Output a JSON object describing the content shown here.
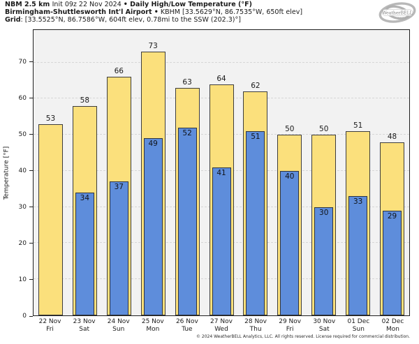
{
  "header": {
    "line1_bold1": "NBM 2.5 km ",
    "line1_regular": "Init 09z 22 Nov 2024 ",
    "line1_bold2": "• Daily High/Low Temperature (°F)",
    "line2_bold": "Birmingham-Shuttlesworth Int'l Airport •",
    "line2_regular": " KBHM [33.5629°N, 86.7535°W, 650ft elev]",
    "line3_bold": "Grid",
    "line3_regular": ": [33.5525°N, 86.7586°W, 604ft elev, 0.78mi to the SSW (202.3)°]"
  },
  "logo": {
    "brand": "WeatherBELL",
    "tagline": "Analytics LLC"
  },
  "chart_data": {
    "type": "bar",
    "title": "Daily High/Low Temperature (°F)",
    "ylabel": "Temperature [°F]",
    "ylim": [
      0,
      79
    ],
    "yticks": [
      0,
      10,
      20,
      30,
      40,
      50,
      60,
      70
    ],
    "grid": "horizontal dashed",
    "legend": "none",
    "plot_bg": "#f2f2f2",
    "categories": [
      {
        "date": "22 Nov",
        "day": "Fri"
      },
      {
        "date": "23 Nov",
        "day": "Sat"
      },
      {
        "date": "24 Nov",
        "day": "Sun"
      },
      {
        "date": "25 Nov",
        "day": "Mon"
      },
      {
        "date": "26 Nov",
        "day": "Tue"
      },
      {
        "date": "27 Nov",
        "day": "Wed"
      },
      {
        "date": "28 Nov",
        "day": "Thu"
      },
      {
        "date": "29 Nov",
        "day": "Fri"
      },
      {
        "date": "30 Nov",
        "day": "Sat"
      },
      {
        "date": "01 Dec",
        "day": "Sun"
      },
      {
        "date": "02 Dec",
        "day": "Mon"
      }
    ],
    "series": [
      {
        "name": "Daily High",
        "color": "#fbe07c",
        "edge_color": "#3d3d3d",
        "values": [
          53,
          58,
          66,
          73,
          63,
          64,
          62,
          50,
          50,
          51,
          48
        ]
      },
      {
        "name": "Daily Low",
        "color": "#5e8ddb",
        "edge_color": "#2e3440",
        "values": [
          null,
          34,
          37,
          49,
          52,
          41,
          51,
          40,
          30,
          33,
          29
        ]
      }
    ]
  },
  "footer": {
    "copyright": "© 2024 WeatherBELL Analytics, LLC. All rights reserved. License required for commercial distribution."
  }
}
